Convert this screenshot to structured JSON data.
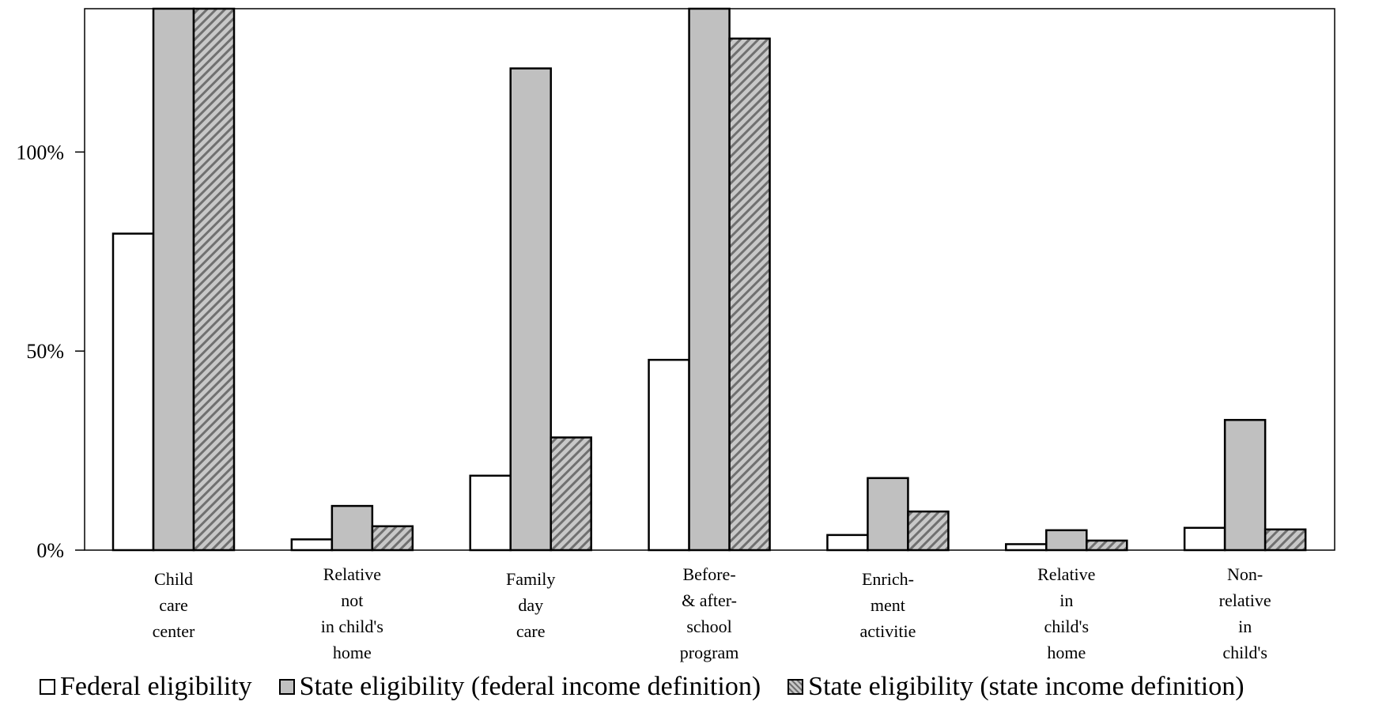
{
  "chart_data": {
    "type": "bar",
    "categories": [
      [
        "Child",
        "care",
        "center"
      ],
      [
        "Relative",
        "not",
        "in child's",
        "home"
      ],
      [
        "Family",
        "day",
        "care"
      ],
      [
        "Before-",
        "& after-",
        "school",
        "program"
      ],
      [
        "Enrich-",
        "ment",
        "activitie"
      ],
      [
        "Relative",
        "in",
        "child's",
        "home"
      ],
      [
        "Non-",
        "relative",
        "in",
        "child's"
      ]
    ],
    "series": [
      {
        "name": "Federal eligibility",
        "values": [
          79.5,
          2.7,
          18.7,
          47.8,
          3.8,
          1.5,
          5.6
        ]
      },
      {
        "name": "State eligibility (federal income definition)",
        "values": [
          136,
          11.1,
          121,
          136,
          18.1,
          5.0,
          32.7
        ]
      },
      {
        "name": "State eligibility (state income definition)",
        "values": [
          136,
          6.0,
          28.3,
          128.5,
          9.7,
          2.4,
          5.2
        ]
      }
    ],
    "yticks": [
      "0%",
      "50%",
      "100%"
    ],
    "ytick_values": [
      0,
      50,
      100
    ],
    "ylim": [
      0,
      136
    ],
    "legend_position": "bottom",
    "grid": false,
    "colors": [
      "#ffffff",
      "#c0c0c0",
      "hatched-grey"
    ]
  }
}
